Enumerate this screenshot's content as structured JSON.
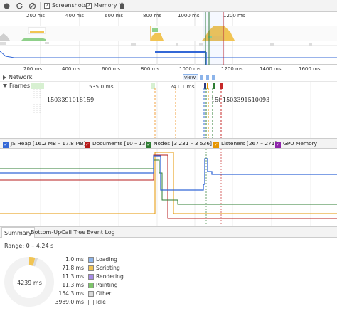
{
  "toolbar": {
    "screenshots_label": "Screenshots",
    "memory_label": "Memory",
    "screenshots_checked": true,
    "memory_checked": true
  },
  "overview": {
    "ticks": [
      "200 ms",
      "400 ms",
      "600 ms",
      "800 ms",
      "1000 ms",
      "1200 ms"
    ]
  },
  "timeline": {
    "ticks": [
      "200 ms",
      "400 ms",
      "600 ms",
      "800 ms",
      "1000 ms",
      "1200 ms",
      "1400 ms",
      "1600 ms"
    ]
  },
  "tracks": {
    "network_label": "Network",
    "frames_label": "Frames",
    "frame_duration_1": "535.0 ms",
    "frame_duration_2": "241.1 ms",
    "network_item": "view",
    "frame_id_1": "1503391018159",
    "frame_id_2": "15(",
    "frame_id_3": "1503391510093"
  },
  "legend": {
    "items": [
      {
        "label": "JS Heap [16.2 MB – 17.8 MB]",
        "color": "#3367d6",
        "checked": true
      },
      {
        "label": "Documents [10 – 13]",
        "color": "#b71c1c",
        "checked": true
      },
      {
        "label": "Nodes [3 231 – 3 536]",
        "color": "#2e7d32",
        "checked": true
      },
      {
        "label": "Listeners [267 – 271]",
        "color": "#e69500",
        "checked": true
      },
      {
        "label": "GPU Memory",
        "color": "#8e24aa",
        "checked": true
      }
    ]
  },
  "bottom_tabs": [
    "Summary",
    "Bottom-Up",
    "Call Tree",
    "Event Log"
  ],
  "summary": {
    "range": "Range: 0 – 4.24 s",
    "total": "4239 ms",
    "rows": [
      {
        "value": "1.0 ms",
        "name": "Loading",
        "color": "#8cb4ea"
      },
      {
        "value": "71.8 ms",
        "name": "Scripting",
        "color": "#f1c453"
      },
      {
        "value": "11.3 ms",
        "name": "Rendering",
        "color": "#a68ae6"
      },
      {
        "value": "11.3 ms",
        "name": "Painting",
        "color": "#7ec46b"
      },
      {
        "value": "154.3 ms",
        "name": "Other",
        "color": "#dadada"
      },
      {
        "value": "3989.0 ms",
        "name": "Idle",
        "color": "#ffffff"
      }
    ]
  },
  "colors": {
    "js_heap": "#3367d6",
    "documents": "#b71c1c",
    "nodes": "#2e7d32",
    "listeners": "#e69500",
    "gpu": "#8e24aa"
  }
}
